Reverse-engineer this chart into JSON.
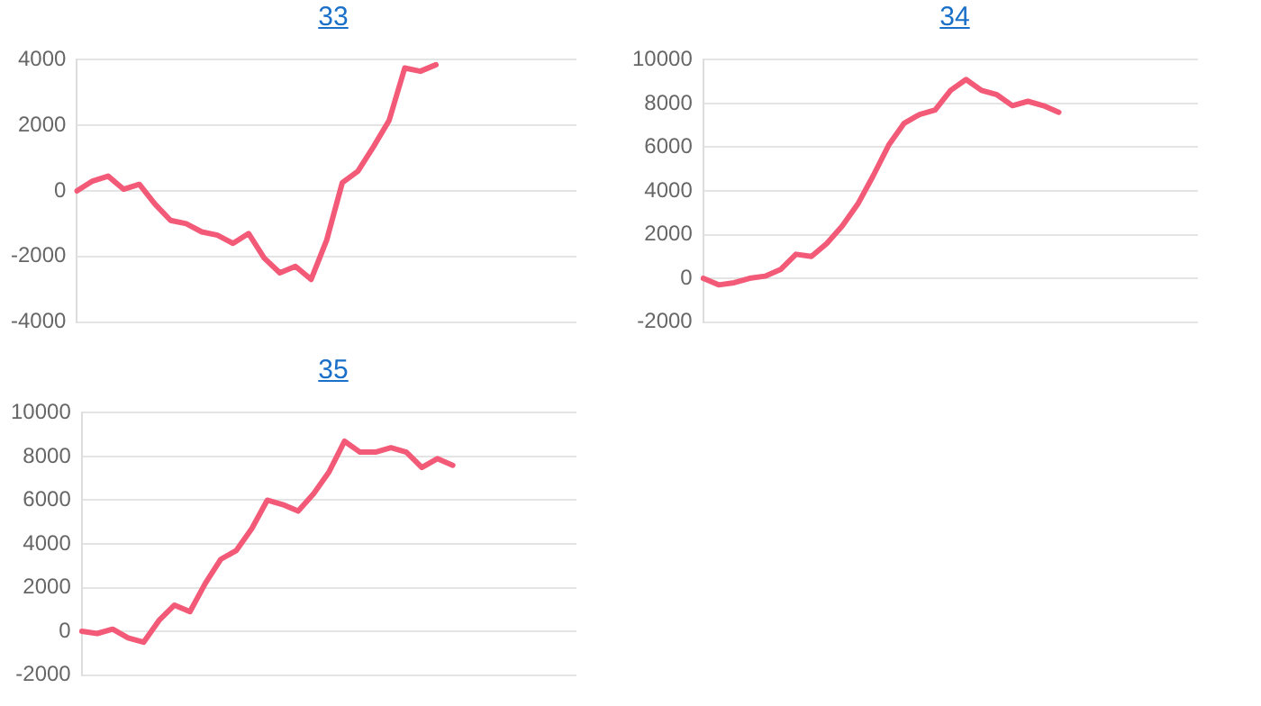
{
  "chart_data": [
    {
      "type": "line",
      "title": "33",
      "categories": [
        null,
        null,
        null,
        null,
        null,
        null,
        null,
        null,
        null,
        null,
        null,
        null,
        null,
        null,
        null,
        null,
        null,
        null,
        null,
        null,
        null,
        null,
        null,
        null,
        null,
        null,
        null,
        null,
        null,
        null,
        null,
        null,
        null
      ],
      "series": [
        {
          "color": "#f25a78",
          "values": [
            0,
            300,
            450,
            50,
            200,
            -400,
            -900,
            -1000,
            -1250,
            -1350,
            -1600,
            -1300,
            -2050,
            -2500,
            -2300,
            -2700,
            -1500,
            250,
            600,
            1350,
            2150,
            3750,
            3650,
            3850,
            null,
            null,
            null,
            null,
            null,
            null,
            null,
            null,
            null
          ]
        }
      ],
      "ylim": [
        -4000,
        4000
      ],
      "yticks": [
        -4000,
        -2000,
        0,
        2000,
        4000
      ],
      "grid": "y",
      "legend": false,
      "tick_labels": "y",
      "marker": "none"
    },
    {
      "type": "line",
      "title": "34",
      "categories": [
        null,
        null,
        null,
        null,
        null,
        null,
        null,
        null,
        null,
        null,
        null,
        null,
        null,
        null,
        null,
        null,
        null,
        null,
        null,
        null,
        null,
        null,
        null,
        null,
        null,
        null,
        null,
        null,
        null,
        null,
        null,
        null,
        null
      ],
      "series": [
        {
          "color": "#f25a78",
          "values": [
            0,
            -300,
            -200,
            0,
            100,
            400,
            1100,
            1000,
            1600,
            2400,
            3400,
            4700,
            6100,
            7100,
            7500,
            7700,
            8600,
            9100,
            8600,
            8400,
            7900,
            8100,
            7900,
            7600,
            null,
            null,
            null,
            null,
            null,
            null,
            null,
            null,
            null
          ]
        }
      ],
      "ylim": [
        -2000,
        10000
      ],
      "yticks": [
        -2000,
        0,
        2000,
        4000,
        6000,
        8000,
        10000
      ],
      "grid": "y",
      "legend": false,
      "tick_labels": "y",
      "marker": "none"
    },
    {
      "type": "line",
      "title": "35",
      "categories": [
        null,
        null,
        null,
        null,
        null,
        null,
        null,
        null,
        null,
        null,
        null,
        null,
        null,
        null,
        null,
        null,
        null,
        null,
        null,
        null,
        null,
        null,
        null,
        null,
        null,
        null,
        null,
        null,
        null,
        null,
        null,
        null,
        null
      ],
      "series": [
        {
          "color": "#f25a78",
          "values": [
            0,
            -100,
            100,
            -300,
            -500,
            500,
            1200,
            900,
            2200,
            3300,
            3700,
            4700,
            6000,
            5800,
            5500,
            6300,
            7300,
            8700,
            8200,
            8200,
            8400,
            8200,
            7500,
            7900,
            7600,
            null,
            null,
            null,
            null,
            null,
            null,
            null,
            null
          ]
        }
      ],
      "ylim": [
        -2000,
        10000
      ],
      "yticks": [
        -2000,
        0,
        2000,
        4000,
        6000,
        8000,
        10000
      ],
      "grid": "y",
      "legend": false,
      "tick_labels": "y",
      "marker": "none"
    }
  ]
}
